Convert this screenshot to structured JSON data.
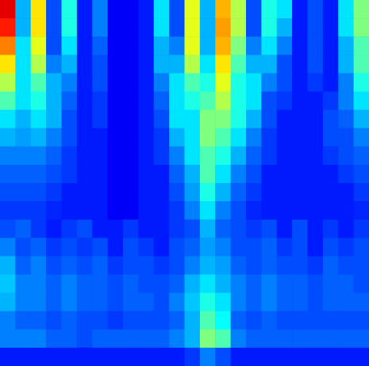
{
  "chart_data": {
    "type": "heatmap",
    "tick_labels": false,
    "zlim": [
      0,
      1
    ],
    "cells": [
      [
        0.9,
        0.3,
        0.65,
        0.2,
        0.4,
        0.15,
        0.25,
        0.12,
        0.12,
        0.15,
        0.35,
        0.2,
        0.6,
        0.3,
        0.7,
        0.55,
        0.2,
        0.4,
        0.35,
        0.15,
        0.2,
        0.15,
        0.35,
        0.5
      ],
      [
        0.85,
        0.3,
        0.65,
        0.2,
        0.4,
        0.15,
        0.25,
        0.12,
        0.12,
        0.15,
        0.35,
        0.2,
        0.6,
        0.3,
        0.72,
        0.55,
        0.2,
        0.4,
        0.3,
        0.15,
        0.2,
        0.15,
        0.35,
        0.5
      ],
      [
        0.75,
        0.35,
        0.6,
        0.2,
        0.35,
        0.15,
        0.22,
        0.12,
        0.12,
        0.15,
        0.3,
        0.25,
        0.6,
        0.3,
        0.7,
        0.5,
        0.25,
        0.35,
        0.25,
        0.15,
        0.2,
        0.15,
        0.3,
        0.45
      ],
      [
        0.65,
        0.35,
        0.55,
        0.25,
        0.3,
        0.15,
        0.2,
        0.12,
        0.12,
        0.15,
        0.3,
        0.3,
        0.55,
        0.35,
        0.65,
        0.45,
        0.3,
        0.3,
        0.2,
        0.15,
        0.2,
        0.15,
        0.3,
        0.45
      ],
      [
        0.55,
        0.35,
        0.45,
        0.3,
        0.25,
        0.15,
        0.2,
        0.12,
        0.12,
        0.15,
        0.25,
        0.35,
        0.45,
        0.4,
        0.6,
        0.4,
        0.35,
        0.25,
        0.2,
        0.15,
        0.18,
        0.15,
        0.25,
        0.4
      ],
      [
        0.45,
        0.35,
        0.4,
        0.3,
        0.22,
        0.15,
        0.18,
        0.12,
        0.12,
        0.15,
        0.22,
        0.35,
        0.4,
        0.45,
        0.55,
        0.4,
        0.35,
        0.2,
        0.18,
        0.15,
        0.15,
        0.18,
        0.25,
        0.35
      ],
      [
        0.35,
        0.3,
        0.35,
        0.3,
        0.2,
        0.15,
        0.18,
        0.12,
        0.12,
        0.15,
        0.2,
        0.35,
        0.35,
        0.5,
        0.5,
        0.4,
        0.3,
        0.2,
        0.15,
        0.15,
        0.15,
        0.2,
        0.22,
        0.3
      ],
      [
        0.3,
        0.28,
        0.3,
        0.25,
        0.2,
        0.15,
        0.15,
        0.12,
        0.12,
        0.15,
        0.18,
        0.3,
        0.35,
        0.5,
        0.45,
        0.35,
        0.25,
        0.18,
        0.15,
        0.15,
        0.15,
        0.2,
        0.2,
        0.25
      ],
      [
        0.25,
        0.25,
        0.25,
        0.22,
        0.18,
        0.15,
        0.15,
        0.12,
        0.12,
        0.15,
        0.18,
        0.25,
        0.35,
        0.45,
        0.4,
        0.3,
        0.22,
        0.18,
        0.15,
        0.15,
        0.15,
        0.18,
        0.2,
        0.22
      ],
      [
        0.22,
        0.22,
        0.22,
        0.2,
        0.18,
        0.15,
        0.15,
        0.12,
        0.12,
        0.15,
        0.15,
        0.22,
        0.3,
        0.45,
        0.35,
        0.25,
        0.2,
        0.15,
        0.15,
        0.15,
        0.15,
        0.15,
        0.18,
        0.2
      ],
      [
        0.2,
        0.2,
        0.2,
        0.18,
        0.15,
        0.15,
        0.15,
        0.12,
        0.12,
        0.15,
        0.15,
        0.2,
        0.28,
        0.4,
        0.3,
        0.22,
        0.18,
        0.15,
        0.15,
        0.15,
        0.15,
        0.15,
        0.15,
        0.18
      ],
      [
        0.18,
        0.18,
        0.18,
        0.16,
        0.15,
        0.15,
        0.15,
        0.12,
        0.12,
        0.15,
        0.15,
        0.18,
        0.25,
        0.35,
        0.25,
        0.2,
        0.16,
        0.15,
        0.15,
        0.15,
        0.15,
        0.15,
        0.15,
        0.16
      ],
      [
        0.2,
        0.22,
        0.18,
        0.15,
        0.18,
        0.2,
        0.15,
        0.15,
        0.18,
        0.15,
        0.15,
        0.18,
        0.2,
        0.3,
        0.22,
        0.2,
        0.18,
        0.2,
        0.15,
        0.2,
        0.15,
        0.18,
        0.15,
        0.18
      ],
      [
        0.25,
        0.2,
        0.22,
        0.18,
        0.2,
        0.18,
        0.2,
        0.15,
        0.2,
        0.18,
        0.15,
        0.2,
        0.22,
        0.28,
        0.25,
        0.2,
        0.2,
        0.22,
        0.18,
        0.2,
        0.15,
        0.2,
        0.18,
        0.2
      ],
      [
        0.3,
        0.22,
        0.25,
        0.2,
        0.22,
        0.2,
        0.22,
        0.18,
        0.2,
        0.2,
        0.18,
        0.2,
        0.25,
        0.3,
        0.28,
        0.22,
        0.2,
        0.22,
        0.2,
        0.2,
        0.18,
        0.22,
        0.2,
        0.2
      ],
      [
        0.32,
        0.25,
        0.25,
        0.22,
        0.25,
        0.22,
        0.22,
        0.2,
        0.22,
        0.2,
        0.2,
        0.22,
        0.3,
        0.35,
        0.3,
        0.25,
        0.22,
        0.25,
        0.22,
        0.22,
        0.2,
        0.22,
        0.22,
        0.2
      ],
      [
        0.3,
        0.25,
        0.25,
        0.22,
        0.25,
        0.22,
        0.22,
        0.2,
        0.22,
        0.22,
        0.2,
        0.25,
        0.32,
        0.4,
        0.35,
        0.25,
        0.22,
        0.25,
        0.22,
        0.22,
        0.2,
        0.22,
        0.22,
        0.22
      ],
      [
        0.25,
        0.22,
        0.22,
        0.2,
        0.22,
        0.2,
        0.2,
        0.18,
        0.2,
        0.2,
        0.2,
        0.22,
        0.3,
        0.45,
        0.38,
        0.22,
        0.2,
        0.22,
        0.2,
        0.2,
        0.2,
        0.2,
        0.2,
        0.2
      ],
      [
        0.25,
        0.25,
        0.25,
        0.22,
        0.22,
        0.2,
        0.22,
        0.22,
        0.22,
        0.22,
        0.22,
        0.25,
        0.3,
        0.5,
        0.45,
        0.25,
        0.22,
        0.22,
        0.22,
        0.22,
        0.22,
        0.22,
        0.22,
        0.22
      ],
      [
        0.15,
        0.15,
        0.15,
        0.15,
        0.15,
        0.15,
        0.15,
        0.15,
        0.15,
        0.15,
        0.15,
        0.15,
        0.18,
        0.25,
        0.2,
        0.15,
        0.15,
        0.15,
        0.15,
        0.15,
        0.15,
        0.15,
        0.15,
        0.15
      ]
    ]
  }
}
